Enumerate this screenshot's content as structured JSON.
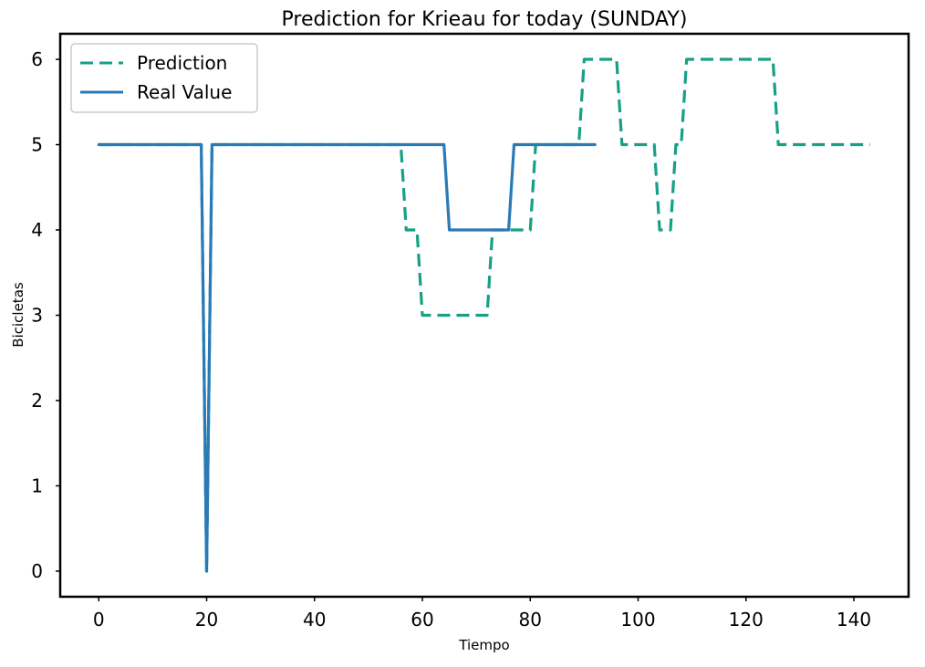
{
  "chart_data": {
    "type": "line",
    "title": "Prediction for Krieau for today (SUNDAY)",
    "xlabel": "Tiempo",
    "ylabel": "Bicicletas",
    "xlim": [
      -7.15,
      150.15
    ],
    "ylim": [
      -0.3,
      6.3
    ],
    "xticks": [
      0,
      20,
      40,
      60,
      80,
      100,
      120,
      140
    ],
    "yticks": [
      0,
      1,
      2,
      3,
      4,
      5,
      6
    ],
    "grid": false,
    "legend_position": "top-left",
    "series": [
      {
        "name": "Prediction",
        "style": "dashed",
        "color": "#17a085",
        "x": [
          0,
          19,
          20,
          21,
          56,
          57,
          58,
          59,
          60,
          72,
          73,
          74,
          80,
          81,
          82,
          88,
          89,
          90,
          96,
          97,
          102,
          103,
          104,
          105,
          106,
          107,
          108,
          109,
          110,
          125,
          126,
          143
        ],
        "y": [
          5,
          5,
          0,
          5,
          5,
          4,
          4,
          4,
          3,
          3,
          4,
          4,
          4,
          5,
          5,
          5,
          5,
          6,
          6,
          5,
          5,
          5,
          4,
          4,
          4,
          5,
          5,
          6,
          6,
          6,
          5,
          5
        ]
      },
      {
        "name": "Real Value",
        "style": "solid",
        "color": "#2a7ab8",
        "x": [
          0,
          19,
          20,
          21,
          64,
          65,
          76,
          77,
          92
        ],
        "y": [
          5,
          5,
          0,
          5,
          5,
          4,
          4,
          5,
          5
        ]
      }
    ]
  }
}
